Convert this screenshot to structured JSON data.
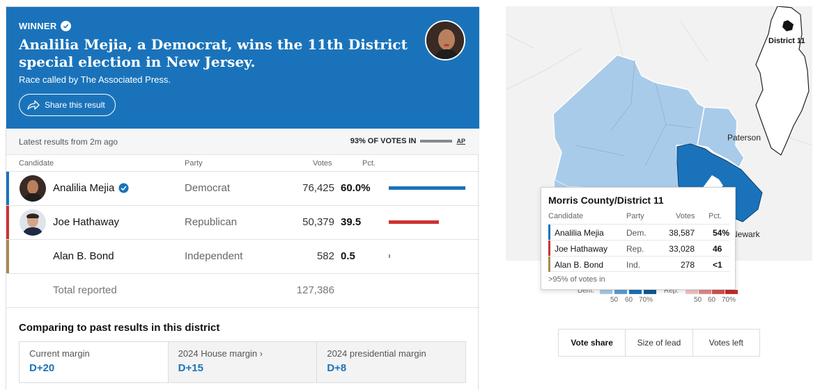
{
  "banner": {
    "winner_label": "WINNER",
    "headline": "Analilia Mejia, a Democrat, wins the 11th District special election in New Jersey.",
    "subline": "Race called by The Associated Press.",
    "share_label": "Share this result"
  },
  "status": {
    "latest": "Latest results from 2m ago",
    "votes_in": "93% OF VOTES IN",
    "votes_in_fraction": 0.93,
    "source": "AP"
  },
  "table": {
    "headers": {
      "candidate": "Candidate",
      "party": "Party",
      "votes": "Votes",
      "pct": "Pct."
    },
    "rows": [
      {
        "name": "Analilia Mejia",
        "party": "Democrat",
        "votes": "76,425",
        "pct": "60.0%",
        "pct_value": 60.0,
        "color": "#1a73ba",
        "winner": true
      },
      {
        "name": "Joe Hathaway",
        "party": "Republican",
        "votes": "50,379",
        "pct": "39.5",
        "pct_value": 39.5,
        "color": "#cc3333",
        "winner": false
      },
      {
        "name": "Alan B. Bond",
        "party": "Independent",
        "votes": "582",
        "pct": "0.5",
        "pct_value": 0.5,
        "color": "#a88b4f",
        "winner": false
      }
    ],
    "total_label": "Total reported",
    "total_votes": "127,386"
  },
  "comparing": {
    "title": "Comparing to past results in this district",
    "cells": [
      {
        "label": "Current margin",
        "value": "D+20"
      },
      {
        "label": "2024 House margin ›",
        "value": "D+15"
      },
      {
        "label": "2024 presidential margin",
        "value": "D+8"
      }
    ]
  },
  "map": {
    "inset_label": "District 11",
    "place_labels": [
      "Paterson",
      "Newark"
    ],
    "tooltip": {
      "title": "Morris County/District 11",
      "headers": {
        "candidate": "Candidate",
        "party": "Party",
        "votes": "Votes",
        "pct": "Pct."
      },
      "rows": [
        {
          "name": "Analilia Mejia",
          "party": "Dem.",
          "votes": "38,587",
          "pct": "54%",
          "color": "#1a73ba"
        },
        {
          "name": "Joe Hathaway",
          "party": "Rep.",
          "votes": "33,028",
          "pct": "46",
          "color": "#cc3333"
        },
        {
          "name": "Alan B. Bond",
          "party": "Ind.",
          "votes": "278",
          "pct": "<1",
          "color": "#a88b4f"
        }
      ],
      "footnote": ">95% of votes in"
    },
    "legend": {
      "dem_label": "Dem.",
      "rep_label": "Rep.",
      "ticks": [
        "50",
        "60",
        "70%"
      ]
    },
    "toggle": [
      "Vote share",
      "Size of lead",
      "Votes left"
    ],
    "toggle_active": "Vote share"
  },
  "colors": {
    "dem": "#1a73ba",
    "rep": "#cc3333",
    "ind": "#a88b4f",
    "map_light_blue": "#a9cbea"
  }
}
